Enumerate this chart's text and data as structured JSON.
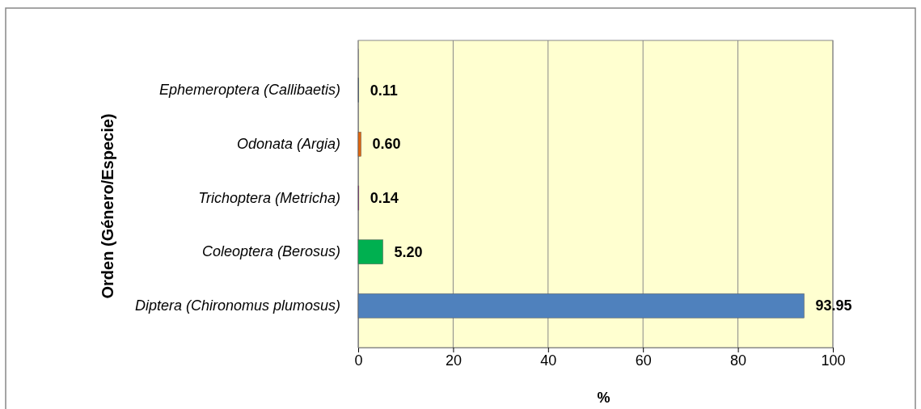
{
  "chart_data": {
    "type": "bar",
    "orientation": "horizontal",
    "categories": [
      "Ephemeroptera (Callibaetis)",
      "Odonata (Argia)",
      "Trichoptera (Metricha)",
      "Coleoptera (Berosus)",
      "Diptera (Chironomus plumosus)"
    ],
    "values": [
      0.11,
      0.6,
      0.14,
      5.2,
      93.95
    ],
    "colors": [
      "#3a5f9a",
      "#e0660f",
      "#a0229f",
      "#00b050",
      "#4f81bd"
    ],
    "value_labels": [
      "0.11",
      "0.60",
      "0.14",
      "5.20",
      "93.95"
    ],
    "xlim": [
      0,
      100
    ],
    "xticks": [
      0,
      20,
      40,
      60,
      80,
      100
    ],
    "grid": "x",
    "xlabel": "%",
    "ylabel": "Orden (Género/Especie)"
  }
}
